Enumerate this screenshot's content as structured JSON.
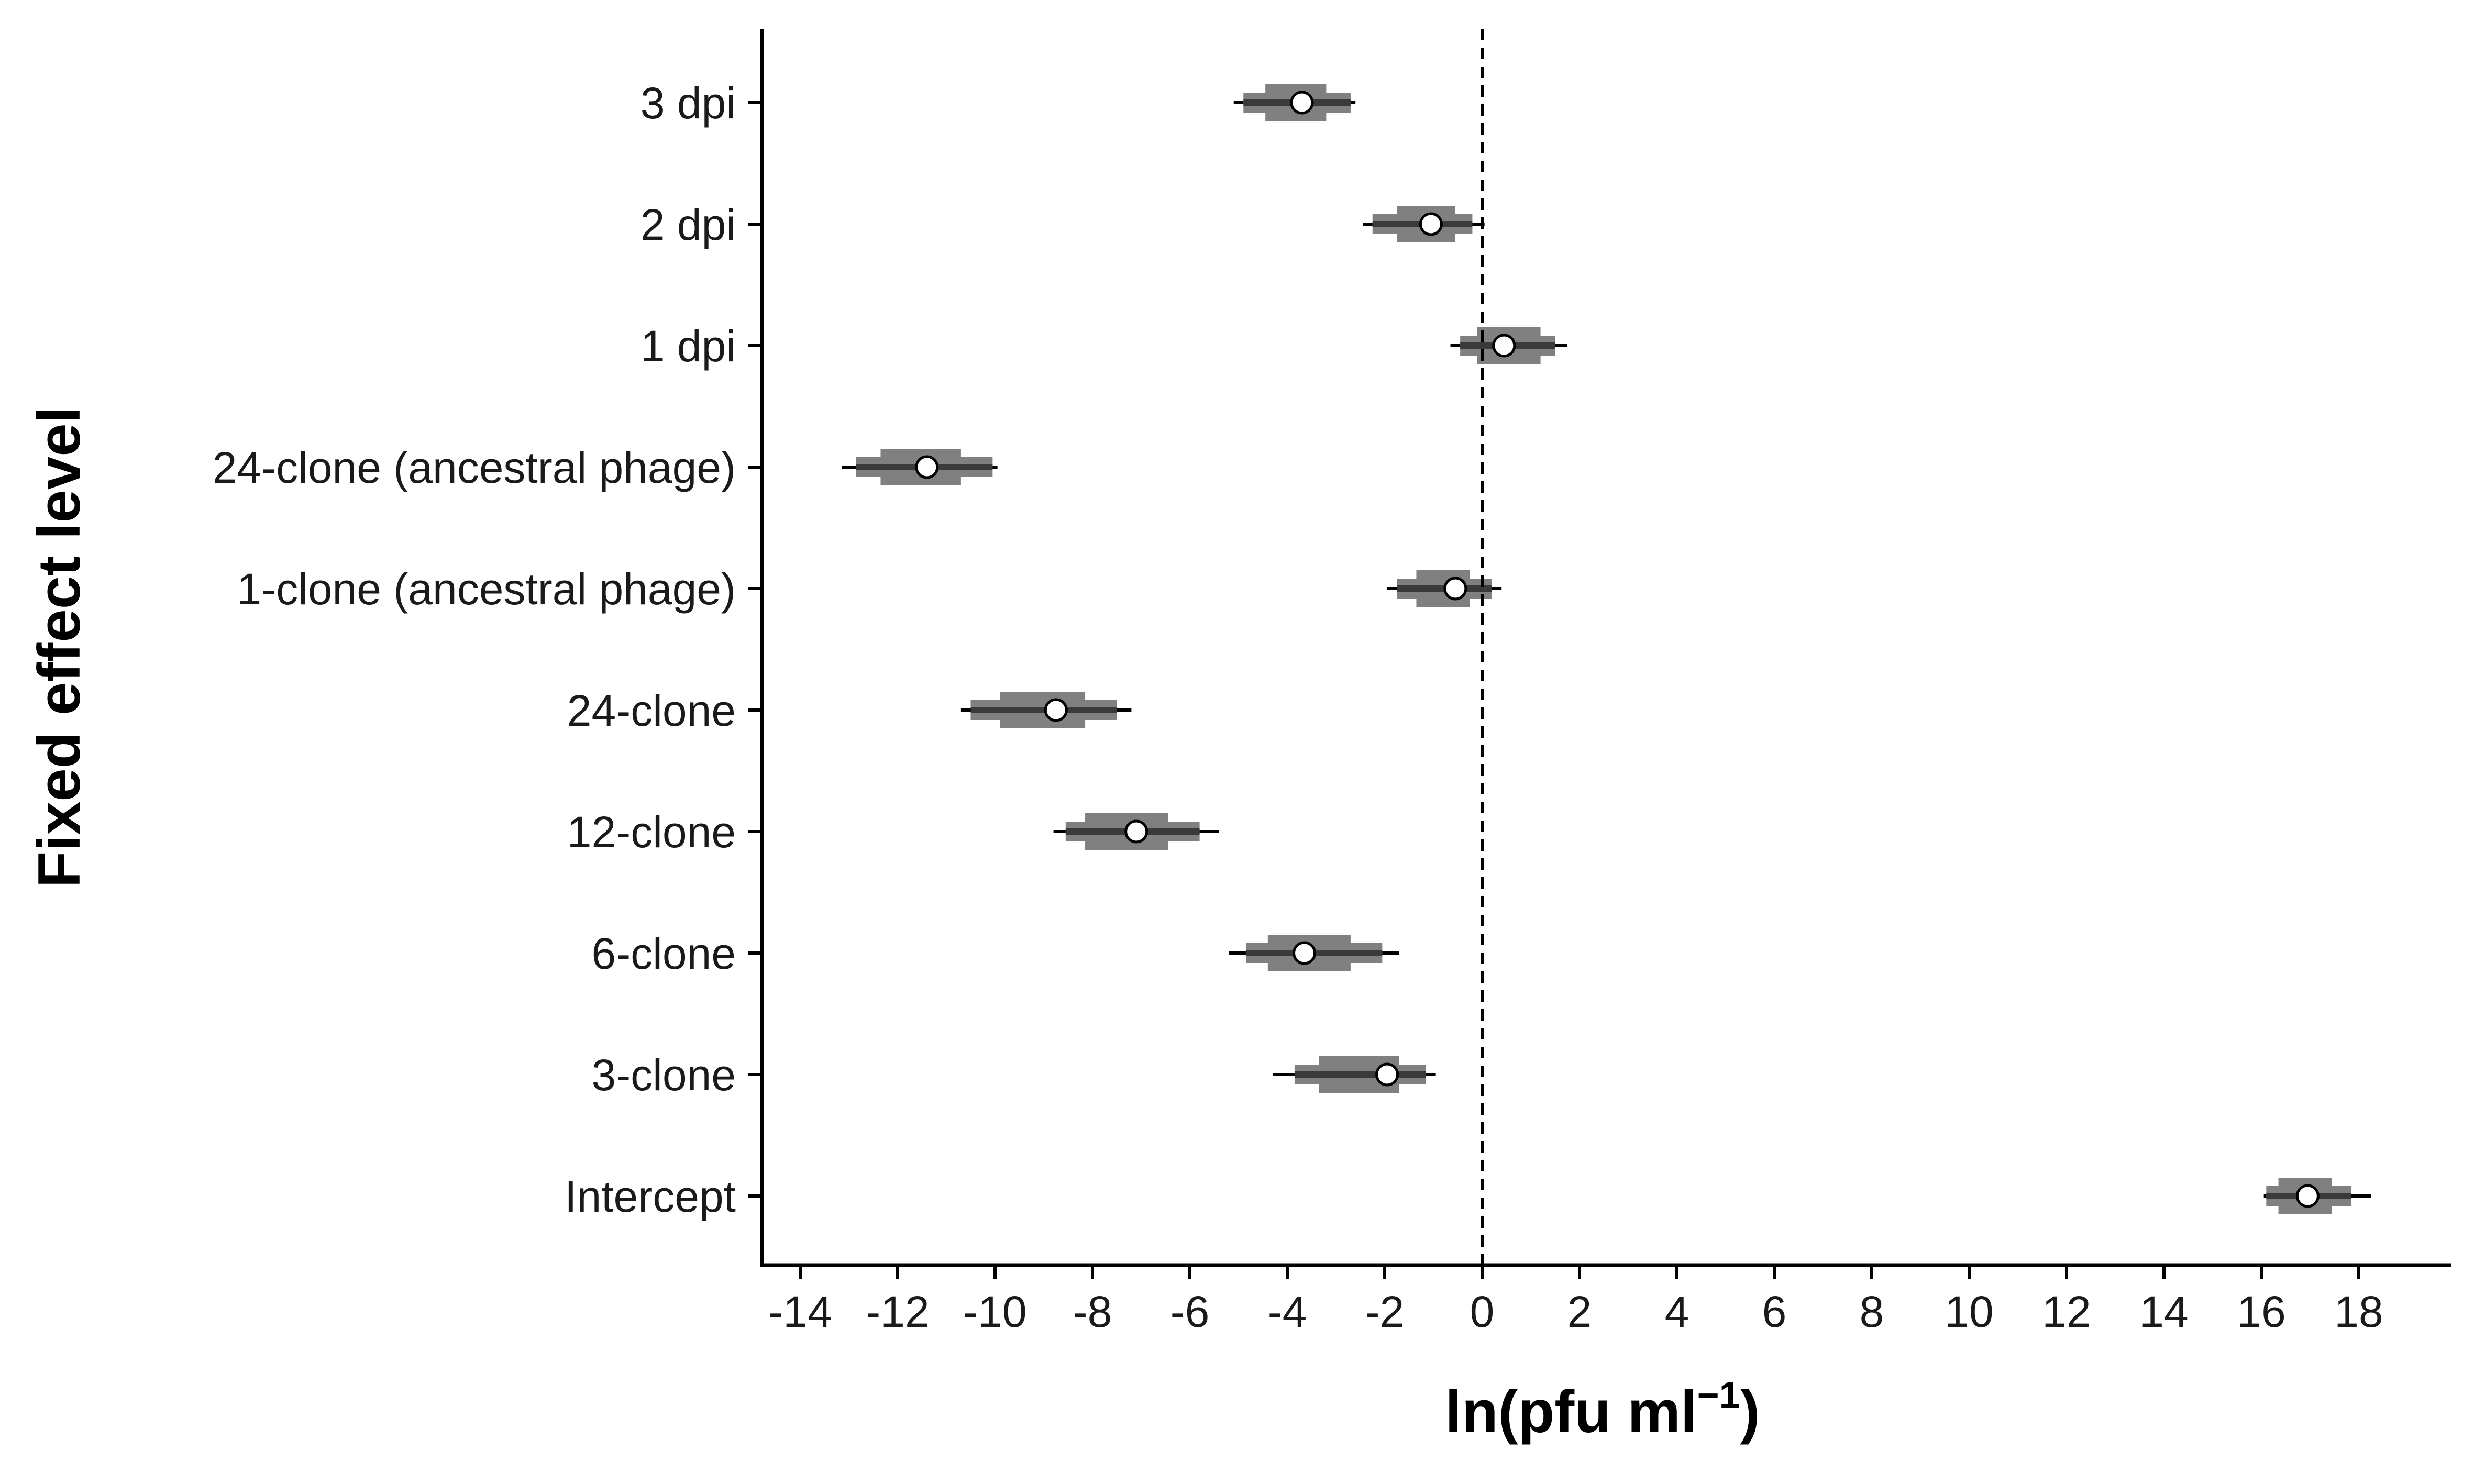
{
  "chart_data": {
    "type": "interval",
    "xlabel": {
      "main": "ln(pfu ml",
      "superscript": "−1",
      "close": ")"
    },
    "ylabel": "Fixed effect level",
    "xlim": [
      -15,
      19.8
    ],
    "xticks": [
      -14,
      -12,
      -10,
      -8,
      -6,
      -4,
      -2,
      0,
      2,
      4,
      6,
      8,
      10,
      12,
      14,
      16,
      18
    ],
    "xtick_labels": [
      "-14",
      "-12",
      "-10",
      "-8",
      "-6",
      "-4",
      "-2",
      "0",
      "2",
      "4",
      "6",
      "8",
      "10",
      "12",
      "14",
      "16",
      "18"
    ],
    "reference_line": 0,
    "grid": false,
    "colors": {
      "interval_50": "#808080",
      "interval_80": "#3a3a3a",
      "interval_95": "#000000",
      "point_fill": "#ffffff",
      "point_stroke": "#000000",
      "axis": "#000000"
    },
    "series": [
      {
        "label": "3 dpi",
        "estimate": -3.7,
        "ci50": [
          -4.45,
          -3.2
        ],
        "ci80": [
          -4.9,
          -2.7
        ],
        "ci95": [
          -5.1,
          -2.6
        ]
      },
      {
        "label": "2 dpi",
        "estimate": -1.05,
        "ci50": [
          -1.75,
          -0.55
        ],
        "ci80": [
          -2.25,
          -0.2
        ],
        "ci95": [
          -2.45,
          0.05
        ]
      },
      {
        "label": "1 dpi",
        "estimate": 0.45,
        "ci50": [
          -0.1,
          1.2
        ],
        "ci80": [
          -0.45,
          1.5
        ],
        "ci95": [
          -0.65,
          1.75
        ]
      },
      {
        "label": "24-clone (ancestral phage)",
        "estimate": -11.4,
        "ci50": [
          -12.35,
          -10.7
        ],
        "ci80": [
          -12.85,
          -10.05
        ],
        "ci95": [
          -13.15,
          -9.95
        ]
      },
      {
        "label": "1-clone (ancestral phage)",
        "estimate": -0.55,
        "ci50": [
          -1.35,
          -0.25
        ],
        "ci80": [
          -1.75,
          0.2
        ],
        "ci95": [
          -1.95,
          0.4
        ]
      },
      {
        "label": "24-clone",
        "estimate": -8.75,
        "ci50": [
          -9.9,
          -8.15
        ],
        "ci80": [
          -10.5,
          -7.5
        ],
        "ci95": [
          -10.7,
          -7.2
        ]
      },
      {
        "label": "12-clone",
        "estimate": -7.1,
        "ci50": [
          -8.15,
          -6.45
        ],
        "ci80": [
          -8.55,
          -5.8
        ],
        "ci95": [
          -8.8,
          -5.4
        ]
      },
      {
        "label": "6-clone",
        "estimate": -3.65,
        "ci50": [
          -4.4,
          -2.7
        ],
        "ci80": [
          -4.85,
          -2.05
        ],
        "ci95": [
          -5.2,
          -1.7
        ]
      },
      {
        "label": "3-clone",
        "estimate": -1.95,
        "ci50": [
          -3.35,
          -1.7
        ],
        "ci80": [
          -3.85,
          -1.15
        ],
        "ci95": [
          -4.3,
          -0.95
        ]
      },
      {
        "label": "Intercept",
        "estimate": 16.95,
        "ci50": [
          16.35,
          17.45
        ],
        "ci80": [
          16.1,
          17.85
        ],
        "ci95": [
          16.05,
          18.25
        ]
      }
    ]
  }
}
